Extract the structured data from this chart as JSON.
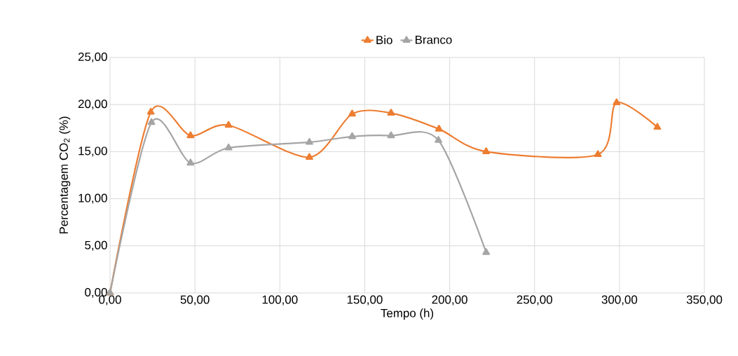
{
  "chart_data": {
    "type": "line",
    "xlabel": "Tempo (h)",
    "ylabel": "Percentagem CO$_{2}$ (%)",
    "series": [
      {
        "name": "Bio",
        "color": "#ed7d31",
        "x": [
          0,
          24.0,
          47.4,
          69.8,
          117.4,
          142.6,
          165.5,
          193.7,
          221.5,
          287.3,
          298.3,
          322.3
        ],
        "values": [
          0,
          19.2,
          16.7,
          17.8,
          14.4,
          19.0,
          19.1,
          17.4,
          15.0,
          14.7,
          20.2,
          17.6
        ]
      },
      {
        "name": "Branco",
        "color": "#a5a5a5",
        "x": [
          0,
          24.4,
          47.4,
          69.8,
          117.4,
          142.6,
          165.5,
          193.4,
          221.5
        ],
        "values": [
          0,
          18.1,
          13.8,
          15.4,
          16.0,
          16.6,
          16.7,
          16.2,
          4.3
        ]
      }
    ],
    "xlim": [
      0,
      350
    ],
    "ylim": [
      0,
      25
    ],
    "xticks": [
      {
        "value": 0,
        "label": "0,00"
      },
      {
        "value": 50,
        "label": "50,00"
      },
      {
        "value": 100,
        "label": "100,00"
      },
      {
        "value": 150,
        "label": "150,00"
      },
      {
        "value": 200,
        "label": "200,00"
      },
      {
        "value": 250,
        "label": "250,00"
      },
      {
        "value": 300,
        "label": "300,00"
      },
      {
        "value": 350,
        "label": "350,00"
      }
    ],
    "yticks": [
      {
        "value": 0,
        "label": "0,00"
      },
      {
        "value": 5,
        "label": "5,00"
      },
      {
        "value": 10,
        "label": "10,00"
      },
      {
        "value": 15,
        "label": "15,00"
      },
      {
        "value": 20,
        "label": "20,00"
      },
      {
        "value": 25,
        "label": "25,00"
      }
    ],
    "grid": true,
    "legend": "top",
    "marker": "triangle",
    "line_style": "solid"
  }
}
